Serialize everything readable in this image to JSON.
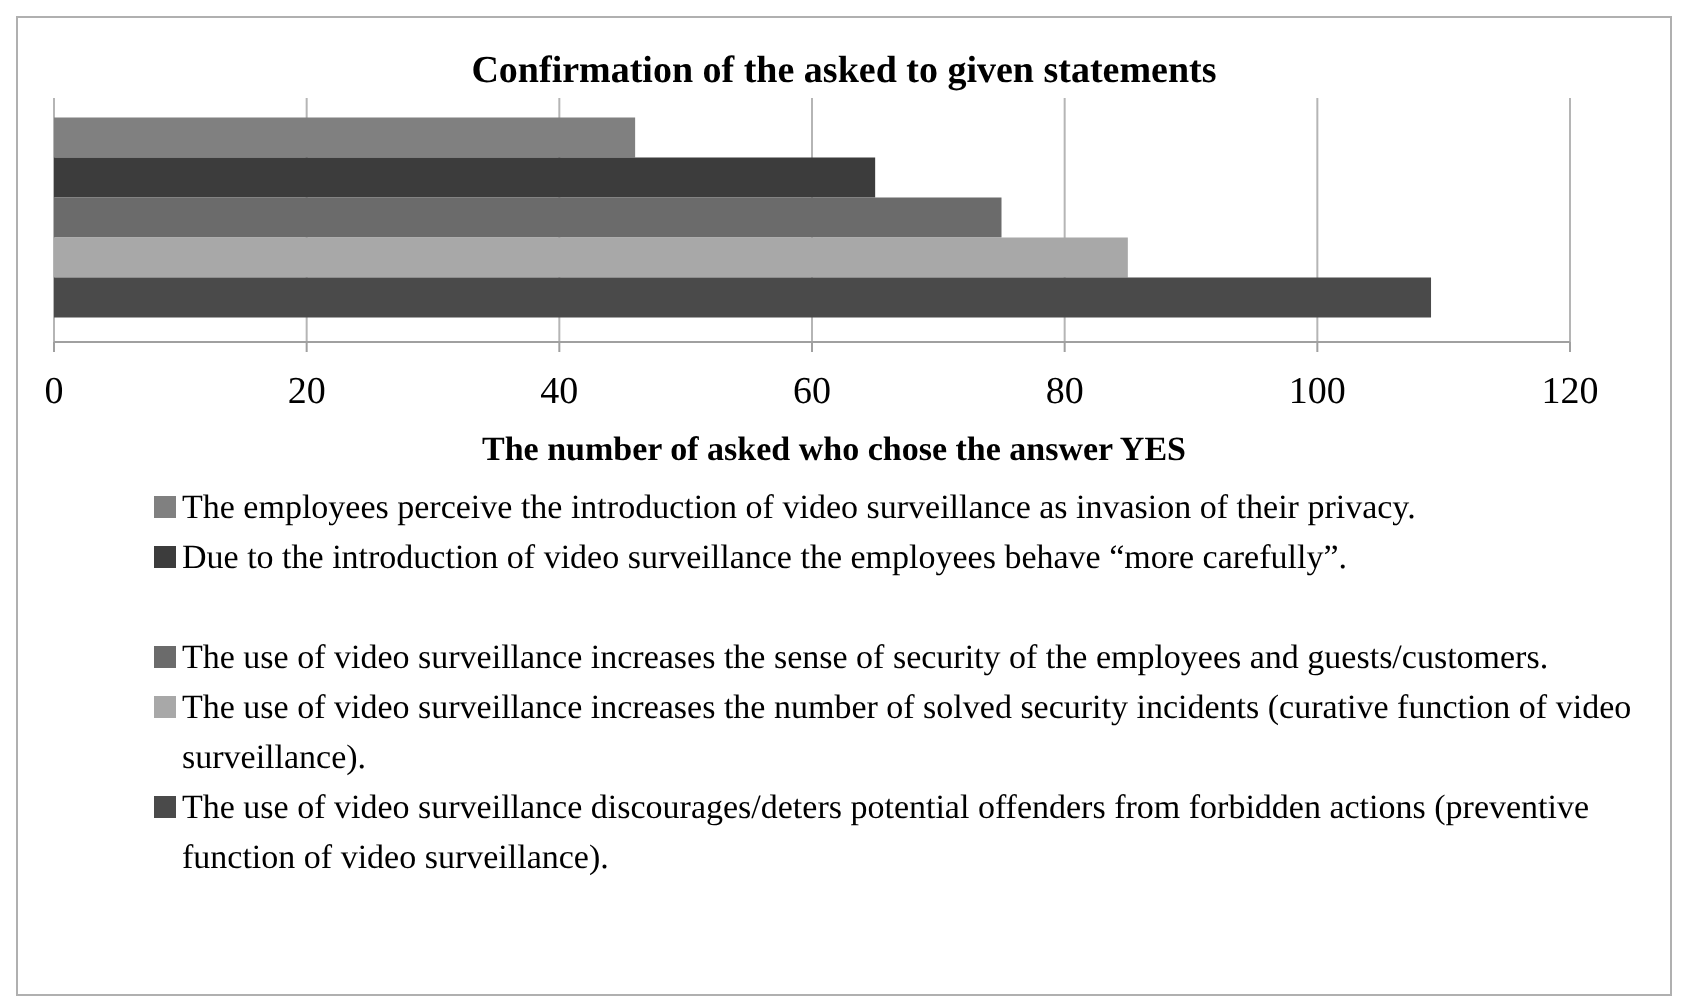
{
  "chart_data": {
    "type": "bar",
    "orientation": "horizontal",
    "title": "Confirmation of the asked to given statements",
    "xlabel": "The number of asked who chose the answer YES",
    "categories": [
      null
    ],
    "series": [
      {
        "name": "The employees perceive the introduction of video surveillance as invasion of their privacy.",
        "color": "#808080",
        "values": [
          46
        ]
      },
      {
        "name": "Due to the introduction of video surveillance the employees behave “more carefully”.",
        "color": "#3c3c3c",
        "values": [
          65
        ]
      },
      {
        "name": "The use of video surveillance increases the sense of security of the employees and guests/customers.",
        "color": "#6b6b6b",
        "values": [
          75
        ]
      },
      {
        "name": "The use of video surveillance increases the number of solved security incidents (curative function of video surveillance).",
        "color": "#a8a8a8",
        "values": [
          85
        ]
      },
      {
        "name": "The use of video surveillance discourages/deters potential offenders from forbidden actions (preventive function of video surveillance).",
        "color": "#4a4a4a",
        "values": [
          109
        ]
      }
    ],
    "xlim": [
      0,
      120
    ],
    "xticks": [
      0,
      20,
      40,
      60,
      80,
      100,
      120
    ],
    "grid": "x",
    "legend": "bottom"
  }
}
